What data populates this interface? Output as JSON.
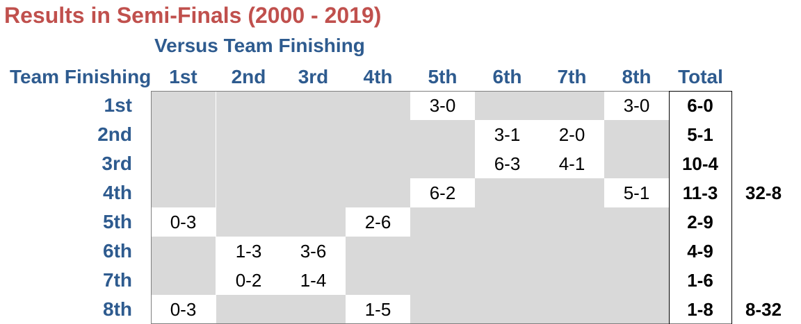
{
  "title": "Results in Semi-Finals (2000 - 2019)",
  "versus_label": "Versus Team Finishing",
  "team_label": "Team Finishing",
  "columns": [
    "1st",
    "2nd",
    "3rd",
    "4th",
    "5th",
    "6th",
    "7th",
    "8th"
  ],
  "total_label": "Total",
  "rows": [
    {
      "label": "1st",
      "cells": [
        "",
        "",
        "",
        "",
        "3-0",
        "",
        "",
        "3-0"
      ],
      "total": "6-0"
    },
    {
      "label": "2nd",
      "cells": [
        "",
        "",
        "",
        "",
        "",
        "3-1",
        "2-0",
        ""
      ],
      "total": "5-1"
    },
    {
      "label": "3rd",
      "cells": [
        "",
        "",
        "",
        "",
        "",
        "6-3",
        "4-1",
        ""
      ],
      "total": "10-4"
    },
    {
      "label": "4th",
      "cells": [
        "",
        "",
        "",
        "",
        "6-2",
        "",
        "",
        "5-1"
      ],
      "total": "11-3"
    },
    {
      "label": "5th",
      "cells": [
        "0-3",
        "",
        "",
        "2-6",
        "",
        "",
        "",
        ""
      ],
      "total": "2-9"
    },
    {
      "label": "6th",
      "cells": [
        "",
        "1-3",
        "3-6",
        "",
        "",
        "",
        "",
        ""
      ],
      "total": "4-9"
    },
    {
      "label": "7th",
      "cells": [
        "",
        "0-2",
        "1-4",
        "",
        "",
        "",
        "",
        ""
      ],
      "total": "1-6"
    },
    {
      "label": "8th",
      "cells": [
        "0-3",
        "",
        "",
        "1-5",
        "",
        "",
        "",
        ""
      ],
      "total": "1-8"
    }
  ],
  "white_cells": [
    [
      0,
      4
    ],
    [
      0,
      7
    ],
    [
      1,
      5
    ],
    [
      1,
      6
    ],
    [
      2,
      5
    ],
    [
      2,
      6
    ],
    [
      3,
      4
    ],
    [
      3,
      7
    ],
    [
      4,
      0
    ],
    [
      4,
      3
    ],
    [
      5,
      1
    ],
    [
      5,
      2
    ],
    [
      6,
      1
    ],
    [
      6,
      2
    ],
    [
      7,
      0
    ],
    [
      7,
      3
    ]
  ],
  "side_totals": [
    {
      "row": 3,
      "value": "32-8"
    },
    {
      "row": 7,
      "value": "8-32"
    }
  ]
}
